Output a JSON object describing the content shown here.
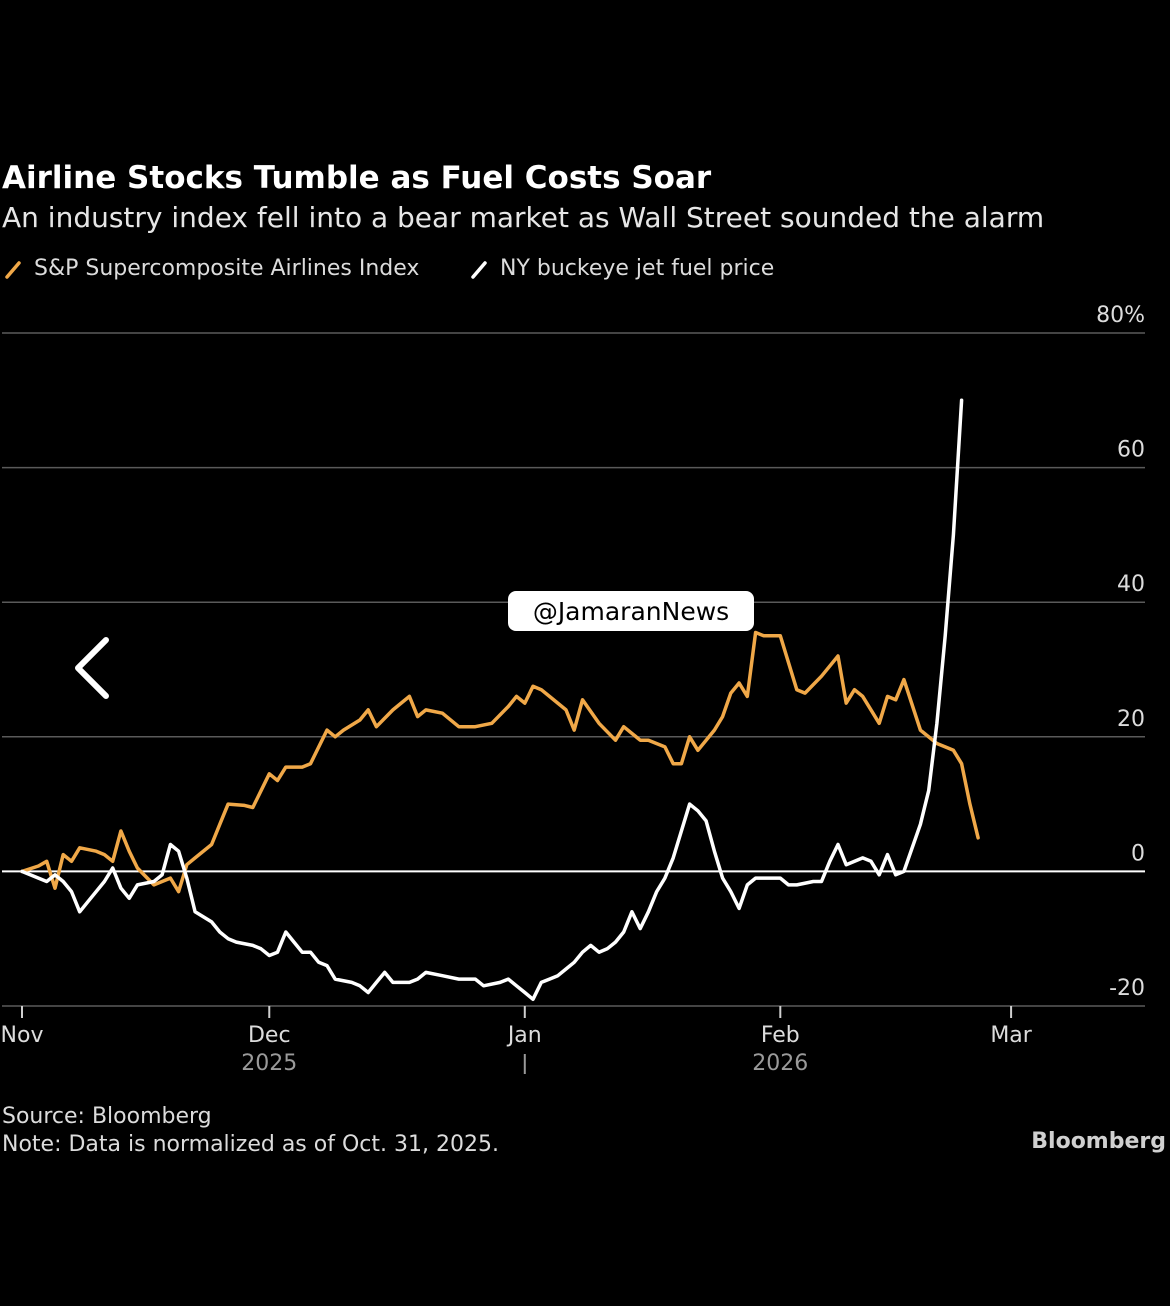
{
  "colors": {
    "airlines": "#f0a848",
    "fuel": "#ffffff",
    "grid": "#5a5a5a",
    "background": "#000000"
  },
  "watermark": "@JamaranNews",
  "back_icon": "chevron-left-icon",
  "footer": {
    "source": "Source: Bloomberg",
    "note": "Note: Data is normalized as of Oct. 31, 2025.",
    "brand": "Bloomberg"
  },
  "chart_data": {
    "type": "line",
    "title": "Airline Stocks Tumble as Fuel Costs Soar",
    "subtitle": "An industry index fell into a bear market as Wall Street sounded the alarm",
    "xlabel": "",
    "ylabel": "",
    "ylim": [
      -20,
      80
    ],
    "ytick_values": [
      80,
      60,
      40,
      20,
      0,
      -20
    ],
    "ytick_labels": [
      "80%",
      "60",
      "40",
      "20",
      "0",
      "-20"
    ],
    "xlim": [
      "2025-10-31",
      "2026-03-12"
    ],
    "x_ticks": [
      {
        "date": "2025-10-31",
        "label": "Nov",
        "year": ""
      },
      {
        "date": "2025-11-30",
        "label": "Dec",
        "year": "2025"
      },
      {
        "date": "2025-12-31",
        "label": "Jan",
        "year": ""
      },
      {
        "date": "2026-01-31",
        "label": "Feb",
        "year": "2026"
      },
      {
        "date": "2026-02-28",
        "label": "Mar",
        "year": ""
      }
    ],
    "legend_position": "top-left",
    "series": [
      {
        "name": "S&P Supercomposite Airlines Index",
        "color": "#f0a848",
        "points": [
          [
            "2025-10-31",
            0
          ],
          [
            "2025-11-02",
            0.8
          ],
          [
            "2025-11-03",
            1.5
          ],
          [
            "2025-11-04",
            -2.5
          ],
          [
            "2025-11-05",
            2.5
          ],
          [
            "2025-11-06",
            1.5
          ],
          [
            "2025-11-07",
            3.5
          ],
          [
            "2025-11-09",
            3
          ],
          [
            "2025-11-10",
            2.5
          ],
          [
            "2025-11-11",
            1.5
          ],
          [
            "2025-11-12",
            6
          ],
          [
            "2025-11-13",
            3
          ],
          [
            "2025-11-14",
            0.5
          ],
          [
            "2025-11-16",
            -2
          ],
          [
            "2025-11-17",
            -1.5
          ],
          [
            "2025-11-18",
            -1
          ],
          [
            "2025-11-19",
            -3
          ],
          [
            "2025-11-20",
            1
          ],
          [
            "2025-11-21",
            2
          ],
          [
            "2025-11-23",
            4
          ],
          [
            "2025-11-24",
            7
          ],
          [
            "2025-11-25",
            10
          ],
          [
            "2025-11-27",
            9.8
          ],
          [
            "2025-11-28",
            9.5
          ],
          [
            "2025-11-30",
            14.5
          ],
          [
            "2025-12-01",
            13.5
          ],
          [
            "2025-12-02",
            15.5
          ],
          [
            "2025-12-04",
            15.5
          ],
          [
            "2025-12-05",
            16
          ],
          [
            "2025-12-07",
            21
          ],
          [
            "2025-12-08",
            20
          ],
          [
            "2025-12-09",
            21
          ],
          [
            "2025-12-11",
            22.5
          ],
          [
            "2025-12-12",
            24
          ],
          [
            "2025-12-13",
            21.5
          ],
          [
            "2025-12-15",
            24
          ],
          [
            "2025-12-17",
            26
          ],
          [
            "2025-12-18",
            23
          ],
          [
            "2025-12-19",
            24
          ],
          [
            "2025-12-21",
            23.5
          ],
          [
            "2025-12-23",
            21.5
          ],
          [
            "2025-12-25",
            21.5
          ],
          [
            "2025-12-27",
            22
          ],
          [
            "2025-12-29",
            24.5
          ],
          [
            "2025-12-30",
            26
          ],
          [
            "2025-12-31",
            25
          ],
          [
            "2026-01-01",
            27.5
          ],
          [
            "2026-01-02",
            27
          ],
          [
            "2026-01-03",
            26
          ],
          [
            "2026-01-05",
            24
          ],
          [
            "2026-01-06",
            21
          ],
          [
            "2026-01-07",
            25.5
          ],
          [
            "2026-01-09",
            22
          ],
          [
            "2026-01-11",
            19.5
          ],
          [
            "2026-01-12",
            21.5
          ],
          [
            "2026-01-14",
            19.5
          ],
          [
            "2026-01-15",
            19.5
          ],
          [
            "2026-01-17",
            18.5
          ],
          [
            "2026-01-18",
            16
          ],
          [
            "2026-01-19",
            16
          ],
          [
            "2026-01-20",
            20
          ],
          [
            "2026-01-21",
            18
          ],
          [
            "2026-01-23",
            21
          ],
          [
            "2026-01-24",
            23
          ],
          [
            "2026-01-25",
            26.5
          ],
          [
            "2026-01-26",
            28
          ],
          [
            "2026-01-27",
            26
          ],
          [
            "2026-01-28",
            35.5
          ],
          [
            "2026-01-29",
            35
          ],
          [
            "2026-01-31",
            35
          ],
          [
            "2026-02-02",
            27
          ],
          [
            "2026-02-03",
            26.5
          ],
          [
            "2026-02-05",
            29
          ],
          [
            "2026-02-07",
            32
          ],
          [
            "2026-02-08",
            25
          ],
          [
            "2026-02-09",
            27
          ],
          [
            "2026-02-10",
            26
          ],
          [
            "2026-02-11",
            24
          ],
          [
            "2026-02-12",
            22
          ],
          [
            "2026-02-13",
            26
          ],
          [
            "2026-02-14",
            25.5
          ],
          [
            "2026-02-15",
            28.5
          ],
          [
            "2026-02-17",
            21
          ],
          [
            "2026-02-19",
            19
          ],
          [
            "2026-02-20",
            18.5
          ],
          [
            "2026-02-21",
            18
          ],
          [
            "2026-02-22",
            16
          ],
          [
            "2026-02-23",
            10
          ],
          [
            "2026-02-24",
            5
          ]
        ]
      },
      {
        "name": "NY buckeye jet fuel price",
        "color": "#ffffff",
        "points": [
          [
            "2025-10-31",
            0
          ],
          [
            "2025-11-01",
            -0.5
          ],
          [
            "2025-11-03",
            -1.5
          ],
          [
            "2025-11-04",
            -0.5
          ],
          [
            "2025-11-05",
            -1.5
          ],
          [
            "2025-11-06",
            -3
          ],
          [
            "2025-11-07",
            -6
          ],
          [
            "2025-11-08",
            -4.5
          ],
          [
            "2025-11-10",
            -1.5
          ],
          [
            "2025-11-11",
            0.5
          ],
          [
            "2025-11-12",
            -2.5
          ],
          [
            "2025-11-13",
            -4
          ],
          [
            "2025-11-14",
            -2
          ],
          [
            "2025-11-16",
            -1.5
          ],
          [
            "2025-11-17",
            -0.5
          ],
          [
            "2025-11-18",
            4
          ],
          [
            "2025-11-19",
            3
          ],
          [
            "2025-11-20",
            -1
          ],
          [
            "2025-11-21",
            -6
          ],
          [
            "2025-11-23",
            -7.5
          ],
          [
            "2025-11-24",
            -9
          ],
          [
            "2025-11-25",
            -10
          ],
          [
            "2025-11-26",
            -10.5
          ],
          [
            "2025-11-28",
            -11
          ],
          [
            "2025-11-29",
            -11.5
          ],
          [
            "2025-11-30",
            -12.5
          ],
          [
            "2025-12-01",
            -12
          ],
          [
            "2025-12-02",
            -9
          ],
          [
            "2025-12-03",
            -10.5
          ],
          [
            "2025-12-04",
            -12
          ],
          [
            "2025-12-05",
            -12
          ],
          [
            "2025-12-06",
            -13.5
          ],
          [
            "2025-12-07",
            -14
          ],
          [
            "2025-12-08",
            -16
          ],
          [
            "2025-12-10",
            -16.5
          ],
          [
            "2025-12-11",
            -17
          ],
          [
            "2025-12-12",
            -18
          ],
          [
            "2025-12-13",
            -16.5
          ],
          [
            "2025-12-14",
            -15
          ],
          [
            "2025-12-15",
            -16.5
          ],
          [
            "2025-12-17",
            -16.5
          ],
          [
            "2025-12-18",
            -16
          ],
          [
            "2025-12-19",
            -15
          ],
          [
            "2025-12-21",
            -15.5
          ],
          [
            "2025-12-23",
            -16
          ],
          [
            "2025-12-25",
            -16
          ],
          [
            "2025-12-26",
            -17
          ],
          [
            "2025-12-28",
            -16.5
          ],
          [
            "2025-12-29",
            -16
          ],
          [
            "2025-12-30",
            -17
          ],
          [
            "2025-12-31",
            -18
          ],
          [
            "2026-01-01",
            -19
          ],
          [
            "2026-01-02",
            -16.5
          ],
          [
            "2026-01-03",
            -16
          ],
          [
            "2026-01-04",
            -15.5
          ],
          [
            "2026-01-05",
            -14.5
          ],
          [
            "2026-01-06",
            -13.5
          ],
          [
            "2026-01-07",
            -12
          ],
          [
            "2026-01-08",
            -11
          ],
          [
            "2026-01-09",
            -12
          ],
          [
            "2026-01-10",
            -11.5
          ],
          [
            "2026-01-11",
            -10.5
          ],
          [
            "2026-01-12",
            -9
          ],
          [
            "2026-01-13",
            -6
          ],
          [
            "2026-01-14",
            -8.5
          ],
          [
            "2026-01-15",
            -6
          ],
          [
            "2026-01-16",
            -3
          ],
          [
            "2026-01-17",
            -1
          ],
          [
            "2026-01-18",
            2
          ],
          [
            "2026-01-19",
            6
          ],
          [
            "2026-01-20",
            10
          ],
          [
            "2026-01-21",
            9
          ],
          [
            "2026-01-22",
            7.5
          ],
          [
            "2026-01-23",
            3
          ],
          [
            "2026-01-24",
            -1
          ],
          [
            "2026-01-25",
            -3
          ],
          [
            "2026-01-26",
            -5.5
          ],
          [
            "2026-01-27",
            -2
          ],
          [
            "2026-01-28",
            -1
          ],
          [
            "2026-01-29",
            -1
          ],
          [
            "2026-01-31",
            -1
          ],
          [
            "2026-02-01",
            -2
          ],
          [
            "2026-02-02",
            -2
          ],
          [
            "2026-02-04",
            -1.5
          ],
          [
            "2026-02-05",
            -1.5
          ],
          [
            "2026-02-06",
            1.5
          ],
          [
            "2026-02-07",
            4
          ],
          [
            "2026-02-08",
            1
          ],
          [
            "2026-02-10",
            2
          ],
          [
            "2026-02-11",
            1.5
          ],
          [
            "2026-02-12",
            -0.5
          ],
          [
            "2026-02-13",
            2.5
          ],
          [
            "2026-02-14",
            -0.5
          ],
          [
            "2026-02-15",
            0
          ],
          [
            "2026-02-17",
            7
          ],
          [
            "2026-02-18",
            12
          ],
          [
            "2026-02-19",
            22
          ],
          [
            "2026-02-20",
            35
          ],
          [
            "2026-02-21",
            50
          ],
          [
            "2026-02-22",
            70
          ]
        ]
      }
    ]
  }
}
